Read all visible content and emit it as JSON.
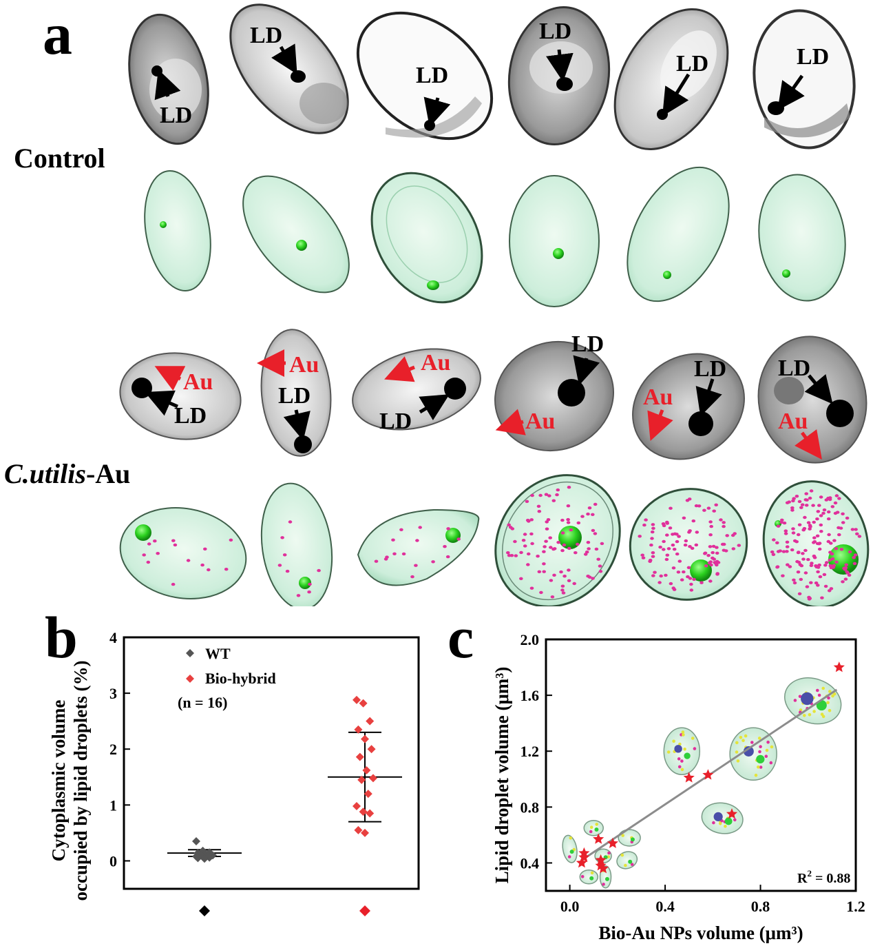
{
  "panel_a": {
    "letter": "a",
    "row_labels": {
      "control": "Control",
      "hybrid_italic": "C.utilis",
      "hybrid_suffix": "-Au"
    },
    "ld_label": "LD",
    "au_label": "Au"
  },
  "panel_b": {
    "letter": "b",
    "legend": {
      "wt": "WT",
      "hybrid": "Bio-hybrid",
      "n": "(n = 16)"
    },
    "colors": {
      "wt": "#555555",
      "hybrid": "#e8403f"
    }
  },
  "panel_c": {
    "letter": "c",
    "r2_prefix": "R",
    "r2_sup": "2",
    "r2_value": " = 0.88",
    "colors": {
      "marker": "#e8202a",
      "fit": "#8c8c8c"
    }
  },
  "chart_data": [
    {
      "type": "scatter",
      "title": "",
      "ylabel": "Cytoplasmic volume occupied by lipid droplets (%)",
      "ylabel_lines": [
        "Cytoplasmic volume",
        "occupied by lipid droplets (%)"
      ],
      "ylim": [
        -0.5,
        4
      ],
      "yticks": [
        "0",
        "1",
        "2",
        "3",
        "4"
      ],
      "xlabel": "",
      "categories": [
        "WT",
        "Bio-hybrid"
      ],
      "series": [
        {
          "name": "WT",
          "values": [
            0.35,
            0.18,
            0.15,
            0.14,
            0.13,
            0.12,
            0.12,
            0.11,
            0.1,
            0.1,
            0.09,
            0.08,
            0.07,
            0.06,
            0.05,
            0.04
          ],
          "mean": 0.14,
          "sd_low": 0.08,
          "sd_high": 0.2
        },
        {
          "name": "Bio-hybrid",
          "values": [
            2.88,
            2.82,
            2.5,
            2.35,
            2.18,
            2.0,
            1.86,
            1.62,
            1.48,
            1.45,
            1.2,
            0.98,
            0.88,
            0.85,
            0.55,
            0.5
          ],
          "mean": 1.5,
          "sd_low": 0.7,
          "sd_high": 2.3
        }
      ]
    },
    {
      "type": "scatter",
      "title": "",
      "xlabel": "Bio-Au NPs volume (μm³)",
      "ylabel": "Lipid droplet volume (μm³)",
      "xlim": [
        -0.1,
        1.2
      ],
      "ylim": [
        0.2,
        2.0
      ],
      "xticks": [
        "0.0",
        "0.4",
        "0.8",
        "1.2"
      ],
      "yticks": [
        "0.4",
        "0.8",
        "1.2",
        "1.6",
        "2.0"
      ],
      "series": [
        {
          "name": "",
          "x": [
            0.05,
            0.06,
            0.06,
            0.12,
            0.13,
            0.14,
            0.13,
            0.18,
            0.5,
            0.58,
            0.68,
            1.13
          ],
          "y": [
            0.4,
            0.44,
            0.47,
            0.57,
            0.42,
            0.36,
            0.38,
            0.54,
            1.01,
            1.03,
            0.75,
            1.8
          ]
        }
      ],
      "fit": {
        "x": [
          0.05,
          1.12
        ],
        "y": [
          0.42,
          1.64
        ]
      },
      "r2": 0.88
    }
  ]
}
